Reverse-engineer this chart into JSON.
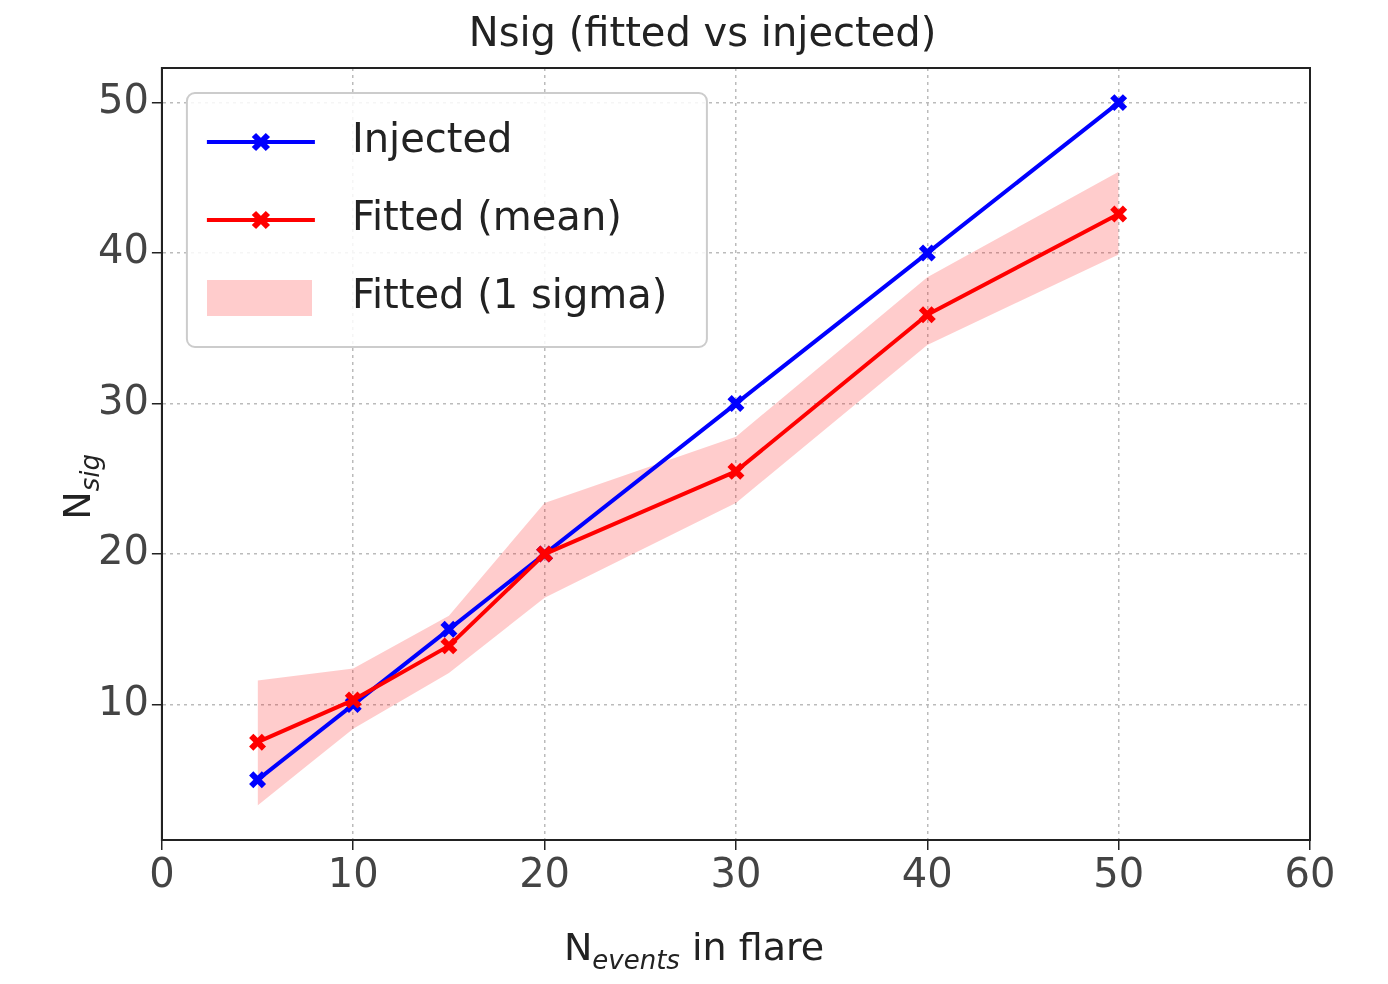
{
  "chart_data": {
    "type": "line",
    "title": "Nsig (fitted vs injected)",
    "xlabel": "N$_{events}$ in flare",
    "ylabel": "N$_{sig}$",
    "x": [
      5,
      10,
      15,
      20,
      30,
      40,
      50
    ],
    "series": [
      {
        "name": "Injected",
        "color": "#0000ff",
        "values": [
          5,
          10,
          15,
          20,
          30,
          40,
          50
        ]
      },
      {
        "name": "Fitted (mean)",
        "color": "#ff0000",
        "values": [
          7.5,
          10.3,
          13.9,
          20,
          25.5,
          35.9,
          42.6
        ],
        "lower": [
          3.3,
          8.4,
          12.1,
          17.1,
          23.4,
          33.9,
          39.9
        ],
        "upper": [
          11.6,
          12.4,
          15.9,
          23.4,
          27.8,
          38.4,
          45.4
        ]
      }
    ],
    "annotations": [
      "Fitted (1 sigma)"
    ],
    "xlim": [
      0,
      60
    ],
    "xticks": [
      0,
      10,
      20,
      30,
      40,
      50,
      60
    ],
    "ylim": [
      1,
      52.3
    ],
    "yticks": [
      10,
      20,
      30,
      40,
      50
    ],
    "grid": true,
    "legend": "top left",
    "marker": "cross",
    "line_style": "solid"
  }
}
